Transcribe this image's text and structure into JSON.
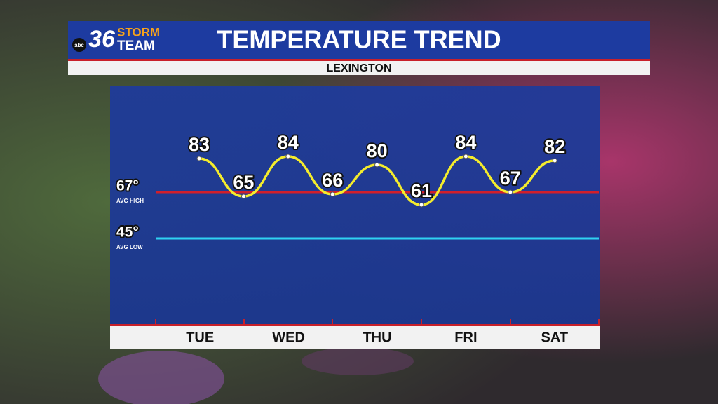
{
  "header": {
    "logo": {
      "network": "abc",
      "number": "36",
      "line1": "STORM",
      "line2": "TEAM"
    },
    "title": "TEMPERATURE TREND",
    "subtitle": "LEXINGTON"
  },
  "chart_data": {
    "type": "line",
    "values": [
      83,
      65,
      84,
      66,
      80,
      61,
      84,
      67,
      82
    ],
    "color": "#f4ec2c",
    "day_labels": [
      "TUE",
      "WED",
      "THU",
      "FRI",
      "SAT"
    ],
    "ylim": [
      4,
      114
    ],
    "avg_high": {
      "value": 67,
      "label": "67°",
      "caption": "AVG HIGH",
      "color": "#d11f2b"
    },
    "avg_low": {
      "value": 45,
      "label": "45°",
      "caption": "AVG LOW",
      "color": "#2fd2f2"
    }
  }
}
